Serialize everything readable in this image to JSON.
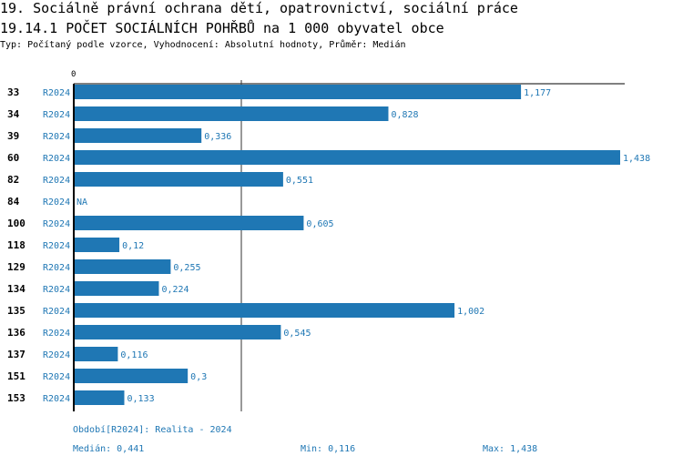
{
  "header": {
    "title": "19. Sociálně právní ochrana dětí, opatrovnictví, sociální práce",
    "subtitle": "19.14.1 POČET SOCIÁLNÍCH POHŘBŮ na 1 000 obyvatel obce",
    "type_line": "Typ: Počítaný podle vzorce, Vyhodnocení: Absolutní hodnoty, Průměr: Medián"
  },
  "chart_data": {
    "type": "bar",
    "orientation": "horizontal",
    "xlim": [
      0,
      1.438
    ],
    "x_tick_labels": [
      "0"
    ],
    "period": "R2024",
    "categories": [
      "33",
      "34",
      "39",
      "60",
      "82",
      "84",
      "100",
      "118",
      "129",
      "134",
      "135",
      "136",
      "137",
      "151",
      "153"
    ],
    "values": [
      1.177,
      0.828,
      0.336,
      1.438,
      0.551,
      null,
      0.605,
      0.12,
      0.255,
      0.224,
      1.002,
      0.545,
      0.116,
      0.3,
      0.133
    ],
    "value_labels": [
      "1,177",
      "0,828",
      "0,336",
      "1,438",
      "0,551",
      "NA",
      "0,605",
      "0,12",
      "0,255",
      "0,224",
      "1,002",
      "0,545",
      "0,116",
      "0,3",
      "0,133"
    ],
    "median": 0.441,
    "bar_color": "#1f77b4"
  },
  "footer": {
    "period_note": "Období[R2024]: Realita - 2024",
    "median": "Medián: 0,441",
    "min": "Min: 0,116",
    "max": "Max: 1,438"
  }
}
